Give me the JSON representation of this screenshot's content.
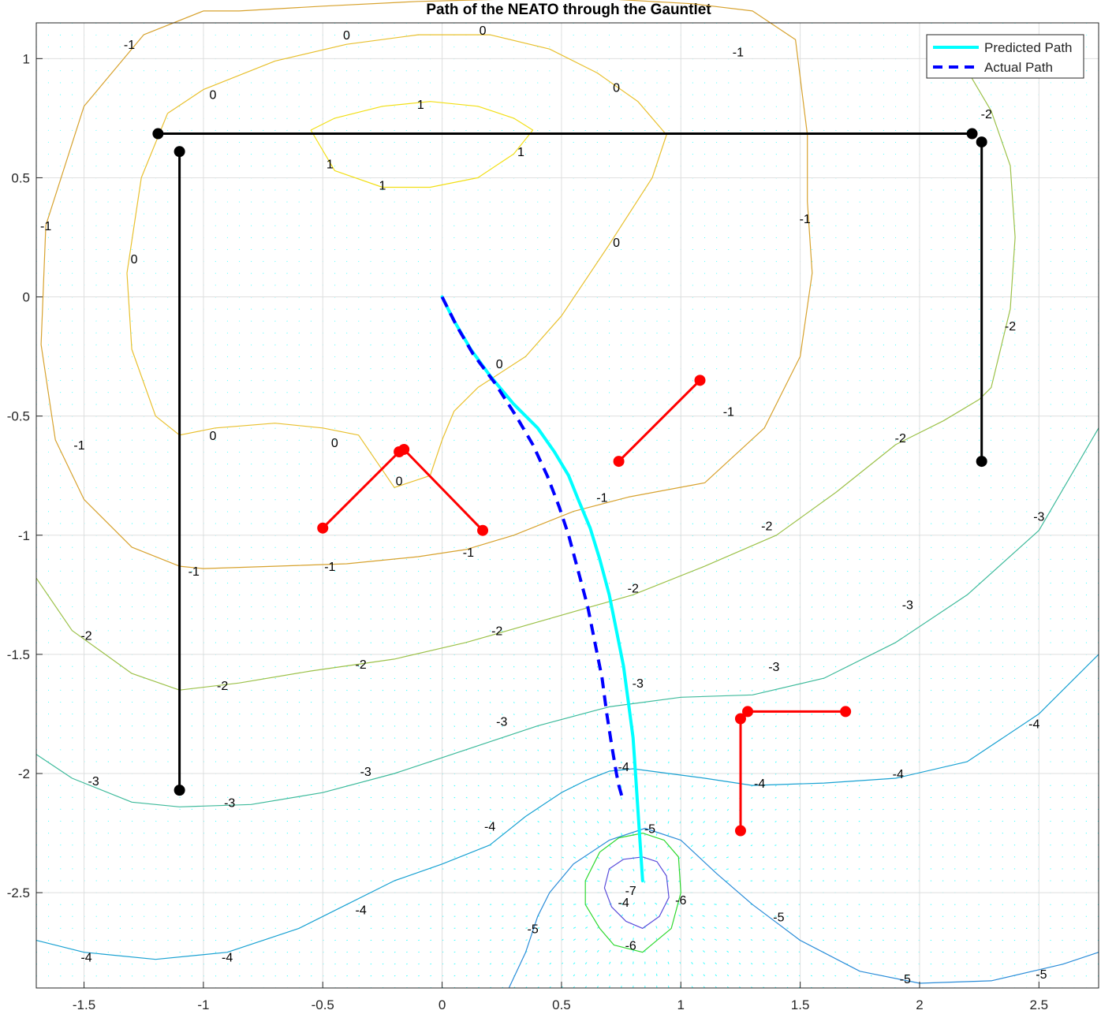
{
  "chart_data": {
    "type": "line",
    "title": "Path of the NEATO through the Gauntlet",
    "xlabel": "",
    "ylabel": "",
    "xlim": [
      -1.7,
      2.75
    ],
    "ylim": [
      -2.9,
      1.15
    ],
    "x_ticks": [
      "-1.5",
      "-1",
      "-0.5",
      "0",
      "0.5",
      "1",
      "1.5",
      "2",
      "2.5"
    ],
    "x_tick_values": [
      -1.5,
      -1,
      -0.5,
      0,
      0.5,
      1,
      1.5,
      2,
      2.5
    ],
    "y_ticks": [
      "1",
      "0.5",
      "0",
      "-0.5",
      "-1",
      "-1.5",
      "-2",
      "-2.5"
    ],
    "y_tick_values": [
      1,
      0.5,
      0,
      -0.5,
      -1,
      -1.5,
      -2,
      -2.5
    ],
    "grid": true,
    "legend_position": "top-right",
    "colors": {
      "predicted": "#00FFFF",
      "actual": "#0000FF",
      "walls": "#000000",
      "obstacles": "#FF0000",
      "quiver": "#00FFFF",
      "grid": "#DFDFDF"
    },
    "series": [
      {
        "name": "Predicted Path",
        "style": "solid",
        "x": [
          0.0,
          0.05,
          0.12,
          0.2,
          0.3,
          0.4,
          0.47,
          0.53,
          0.57,
          0.62,
          0.66,
          0.7,
          0.73,
          0.76,
          0.78,
          0.8,
          0.81,
          0.82,
          0.83,
          0.84
        ],
        "y": [
          0.0,
          -0.1,
          -0.22,
          -0.33,
          -0.45,
          -0.55,
          -0.65,
          -0.75,
          -0.85,
          -0.97,
          -1.1,
          -1.25,
          -1.4,
          -1.55,
          -1.7,
          -1.85,
          -2.0,
          -2.15,
          -2.3,
          -2.45
        ]
      },
      {
        "name": "Actual Path",
        "style": "dashed",
        "x": [
          0.0,
          0.06,
          0.13,
          0.22,
          0.31,
          0.38,
          0.44,
          0.49,
          0.53,
          0.57,
          0.61,
          0.64,
          0.67,
          0.69,
          0.71,
          0.73,
          0.74,
          0.76
        ],
        "y": [
          0.0,
          -0.12,
          -0.24,
          -0.36,
          -0.5,
          -0.62,
          -0.75,
          -0.88,
          -1.0,
          -1.15,
          -1.3,
          -1.45,
          -1.6,
          -1.75,
          -1.88,
          -2.0,
          -2.05,
          -2.12
        ]
      }
    ],
    "walls": [
      {
        "x": [
          -1.19,
          2.22
        ],
        "y": [
          0.685,
          0.685
        ]
      },
      {
        "x": [
          -1.1,
          -1.1
        ],
        "y": [
          0.61,
          -2.07
        ]
      },
      {
        "x": [
          2.26,
          2.26
        ],
        "y": [
          0.65,
          -0.69
        ]
      }
    ],
    "wall_points": {
      "x": [
        -1.19,
        -1.1,
        -1.1,
        2.22,
        2.26,
        2.26
      ],
      "y": [
        0.685,
        0.61,
        -2.07,
        0.685,
        0.65,
        -0.69
      ]
    },
    "obstacles": [
      {
        "x": [
          -0.5,
          -0.18,
          -0.16,
          0.17
        ],
        "y": [
          -0.97,
          -0.65,
          -0.64,
          -0.98
        ]
      },
      {
        "x": [
          0.74,
          1.08
        ],
        "y": [
          -0.69,
          -0.35
        ]
      },
      {
        "x": [
          1.25,
          1.25,
          1.28,
          1.69
        ],
        "y": [
          -2.24,
          -1.77,
          -1.74,
          -1.74
        ]
      }
    ],
    "sink": {
      "x": 0.84,
      "y": -2.5
    },
    "contours": [
      {
        "level": "1",
        "color": "#F2DF15",
        "x": [
          -0.55,
          -0.45,
          -0.25,
          -0.05,
          0.15,
          0.3,
          0.38,
          0.3,
          0.15,
          -0.05,
          -0.25,
          -0.45,
          -0.55
        ],
        "y": [
          0.7,
          0.75,
          0.8,
          0.82,
          0.8,
          0.75,
          0.7,
          0.6,
          0.5,
          0.46,
          0.46,
          0.53,
          0.7
        ]
      },
      {
        "level": "0",
        "color": "#E8C02E",
        "x": [
          -1.15,
          -1.0,
          -0.7,
          -0.4,
          -0.1,
          0.2,
          0.45,
          0.65,
          0.82,
          0.94,
          0.88,
          0.7,
          0.5,
          0.35,
          0.15,
          0.05,
          0.0,
          -0.05,
          -0.2,
          -0.35,
          -0.5,
          -0.7,
          -0.95,
          -1.1,
          -1.2,
          -1.3,
          -1.32,
          -1.26,
          -1.15
        ],
        "y": [
          0.77,
          0.87,
          0.99,
          1.06,
          1.1,
          1.1,
          1.04,
          0.94,
          0.82,
          0.68,
          0.5,
          0.22,
          -0.08,
          -0.25,
          -0.38,
          -0.48,
          -0.6,
          -0.75,
          -0.8,
          -0.58,
          -0.55,
          -0.53,
          -0.55,
          -0.58,
          -0.5,
          -0.22,
          0.1,
          0.5,
          0.77
        ]
      },
      {
        "level": "-1",
        "color": "#D7A22E",
        "x": [
          -0.85,
          -0.5,
          -0.1,
          0.3,
          0.7,
          1.05,
          1.3,
          1.48,
          1.53,
          1.53,
          1.55,
          1.5,
          1.35,
          1.1,
          0.78,
          0.55,
          0.3,
          0.1,
          -0.1,
          -0.4,
          -0.7,
          -1.0,
          -1.1,
          -1.3,
          -1.5,
          -1.62,
          -1.68,
          -1.66,
          -1.5,
          -1.25,
          -1.0,
          -0.85
        ],
        "y": [
          1.2,
          1.22,
          1.24,
          1.25,
          1.25,
          1.23,
          1.2,
          1.08,
          0.68,
          0.4,
          0.1,
          -0.25,
          -0.55,
          -0.78,
          -0.84,
          -0.9,
          -1.0,
          -1.06,
          -1.09,
          -1.12,
          -1.13,
          -1.14,
          -1.13,
          -1.05,
          -0.85,
          -0.6,
          -0.2,
          0.3,
          0.8,
          1.1,
          1.2,
          1.2
        ]
      },
      {
        "level": "-2",
        "color": "#9CC149",
        "x": [
          -1.7,
          -1.55,
          -1.3,
          -1.1,
          -0.85,
          -0.55,
          -0.2,
          0.1,
          0.45,
          0.8,
          1.1,
          1.4,
          1.65,
          1.9,
          2.1,
          2.25,
          2.3,
          2.38,
          2.4,
          2.38,
          2.3,
          2.2
        ],
        "y": [
          -1.18,
          -1.4,
          -1.58,
          -1.65,
          -1.62,
          -1.57,
          -1.52,
          -1.45,
          -1.35,
          -1.25,
          -1.13,
          -1.0,
          -0.82,
          -0.62,
          -0.52,
          -0.43,
          -0.38,
          -0.05,
          0.25,
          0.55,
          0.78,
          0.95
        ]
      },
      {
        "level": "-3",
        "color": "#3EBA9B",
        "x": [
          -1.7,
          -1.55,
          -1.3,
          -1.1,
          -0.8,
          -0.5,
          -0.2,
          0.1,
          0.4,
          0.7,
          1.0,
          1.3,
          1.6,
          1.9,
          2.2,
          2.5,
          2.75
        ],
        "y": [
          -1.92,
          -2.02,
          -2.12,
          -2.14,
          -2.13,
          -2.08,
          -2.0,
          -1.9,
          -1.8,
          -1.72,
          -1.68,
          -1.67,
          -1.6,
          -1.45,
          -1.25,
          -0.98,
          -0.55
        ]
      },
      {
        "level": "-4",
        "color": "#18A1D2",
        "x": [
          -1.7,
          -1.5,
          -1.2,
          -0.9,
          -0.6,
          -0.4,
          -0.2,
          0.0,
          0.2,
          0.35,
          0.5,
          0.6,
          0.7,
          0.8,
          0.95,
          1.1,
          1.3,
          1.6,
          1.9,
          2.2,
          2.5,
          2.75
        ],
        "y": [
          -2.7,
          -2.75,
          -2.78,
          -2.75,
          -2.65,
          -2.55,
          -2.45,
          -2.38,
          -2.3,
          -2.18,
          -2.08,
          -2.03,
          -1.99,
          -1.98,
          -2.0,
          -2.02,
          -2.05,
          -2.04,
          -2.02,
          -1.95,
          -1.75,
          -1.5
        ]
      },
      {
        "level": "-5",
        "color": "#2A8CD8",
        "x": [
          0.28,
          0.35,
          0.4,
          0.45,
          0.55,
          0.7,
          0.85,
          1.0,
          1.15,
          1.3,
          1.5,
          1.75,
          2.0,
          2.3,
          2.6,
          2.75
        ],
        "y": [
          -2.9,
          -2.75,
          -2.6,
          -2.5,
          -2.38,
          -2.28,
          -2.23,
          -2.28,
          -2.42,
          -2.55,
          -2.7,
          -2.83,
          -2.88,
          -2.87,
          -2.8,
          -2.75
        ]
      },
      {
        "level": "-6",
        "color": "#2ED82E",
        "x": [
          0.84,
          0.93,
          0.99,
          1.0,
          0.96,
          0.84,
          0.72,
          0.66,
          0.6,
          0.6,
          0.66,
          0.74,
          0.84
        ],
        "y": [
          -2.25,
          -2.28,
          -2.35,
          -2.5,
          -2.65,
          -2.75,
          -2.72,
          -2.65,
          -2.55,
          -2.45,
          -2.33,
          -2.27,
          -2.25
        ]
      },
      {
        "level": "-7",
        "color": "#5A4CDA",
        "x": [
          0.84,
          0.9,
          0.94,
          0.95,
          0.91,
          0.84,
          0.77,
          0.71,
          0.68,
          0.7,
          0.76,
          0.84
        ],
        "y": [
          -2.35,
          -2.37,
          -2.43,
          -2.52,
          -2.6,
          -2.65,
          -2.62,
          -2.56,
          -2.48,
          -2.4,
          -2.36,
          -2.35
        ]
      }
    ],
    "contour_labels": [
      {
        "text": "1",
        "x": -0.09,
        "y": 0.81
      },
      {
        "text": "1",
        "x": -0.47,
        "y": 0.56
      },
      {
        "text": "1",
        "x": -0.25,
        "y": 0.47
      },
      {
        "text": "1",
        "x": 0.33,
        "y": 0.61
      },
      {
        "text": "0",
        "x": -0.4,
        "y": 1.1
      },
      {
        "text": "0",
        "x": 0.17,
        "y": 1.12
      },
      {
        "text": "0",
        "x": 0.73,
        "y": 0.88
      },
      {
        "text": "0",
        "x": 0.73,
        "y": 0.23
      },
      {
        "text": "0",
        "x": 0.24,
        "y": -0.28
      },
      {
        "text": "0",
        "x": -0.96,
        "y": -0.58
      },
      {
        "text": "0",
        "x": -0.45,
        "y": -0.61
      },
      {
        "text": "0",
        "x": -0.18,
        "y": -0.77
      },
      {
        "text": "0",
        "x": -1.29,
        "y": 0.16
      },
      {
        "text": "0",
        "x": -0.96,
        "y": 0.85
      },
      {
        "text": "-1",
        "x": -1.31,
        "y": 1.06
      },
      {
        "text": "-1",
        "x": 1.24,
        "y": 1.03
      },
      {
        "text": "-1",
        "x": 1.52,
        "y": 0.33
      },
      {
        "text": "-1",
        "x": 1.2,
        "y": -0.48
      },
      {
        "text": "-1",
        "x": 0.67,
        "y": -0.84
      },
      {
        "text": "-1",
        "x": 0.11,
        "y": -1.07
      },
      {
        "text": "-1",
        "x": -0.47,
        "y": -1.13
      },
      {
        "text": "-1",
        "x": -1.04,
        "y": -1.15
      },
      {
        "text": "-1",
        "x": -1.52,
        "y": -0.62
      },
      {
        "text": "-1",
        "x": -1.66,
        "y": 0.3
      },
      {
        "text": "-2",
        "x": 2.28,
        "y": 0.77
      },
      {
        "text": "-2",
        "x": 2.38,
        "y": -0.12
      },
      {
        "text": "-2",
        "x": 1.92,
        "y": -0.59
      },
      {
        "text": "-2",
        "x": 1.36,
        "y": -0.96
      },
      {
        "text": "-2",
        "x": 0.8,
        "y": -1.22
      },
      {
        "text": "-2",
        "x": 0.23,
        "y": -1.4
      },
      {
        "text": "-2",
        "x": -0.34,
        "y": -1.54
      },
      {
        "text": "-2",
        "x": -0.92,
        "y": -1.63
      },
      {
        "text": "-2",
        "x": -1.49,
        "y": -1.42
      },
      {
        "text": "-3",
        "x": 2.5,
        "y": -0.92
      },
      {
        "text": "-3",
        "x": 1.95,
        "y": -1.29
      },
      {
        "text": "-3",
        "x": 1.39,
        "y": -1.55
      },
      {
        "text": "-3",
        "x": 0.82,
        "y": -1.62
      },
      {
        "text": "-3",
        "x": 0.25,
        "y": -1.78
      },
      {
        "text": "-3",
        "x": -0.32,
        "y": -1.99
      },
      {
        "text": "-3",
        "x": -0.89,
        "y": -2.12
      },
      {
        "text": "-3",
        "x": -1.46,
        "y": -2.03
      },
      {
        "text": "-4",
        "x": 2.48,
        "y": -1.79
      },
      {
        "text": "-4",
        "x": 1.91,
        "y": -2.0
      },
      {
        "text": "-4",
        "x": 1.33,
        "y": -2.04
      },
      {
        "text": "-4",
        "x": 0.76,
        "y": -1.97
      },
      {
        "text": "-4",
        "x": 0.2,
        "y": -2.22
      },
      {
        "text": "-4",
        "x": -0.34,
        "y": -2.57
      },
      {
        "text": "-4",
        "x": -0.9,
        "y": -2.77
      },
      {
        "text": "-4",
        "x": -1.49,
        "y": -2.77
      },
      {
        "text": "-5",
        "x": 0.87,
        "y": -2.23
      },
      {
        "text": "-5",
        "x": 0.38,
        "y": -2.65
      },
      {
        "text": "-5",
        "x": 1.41,
        "y": -2.6
      },
      {
        "text": "-5",
        "x": 1.94,
        "y": -2.86
      },
      {
        "text": "-5",
        "x": 2.51,
        "y": -2.84
      },
      {
        "text": "-6",
        "x": 1.0,
        "y": -2.53
      },
      {
        "text": "-6",
        "x": 0.79,
        "y": -2.72
      },
      {
        "text": "-7",
        "x": 0.79,
        "y": -2.49
      },
      {
        "text": "-4",
        "x": 0.76,
        "y": -2.54
      }
    ]
  }
}
